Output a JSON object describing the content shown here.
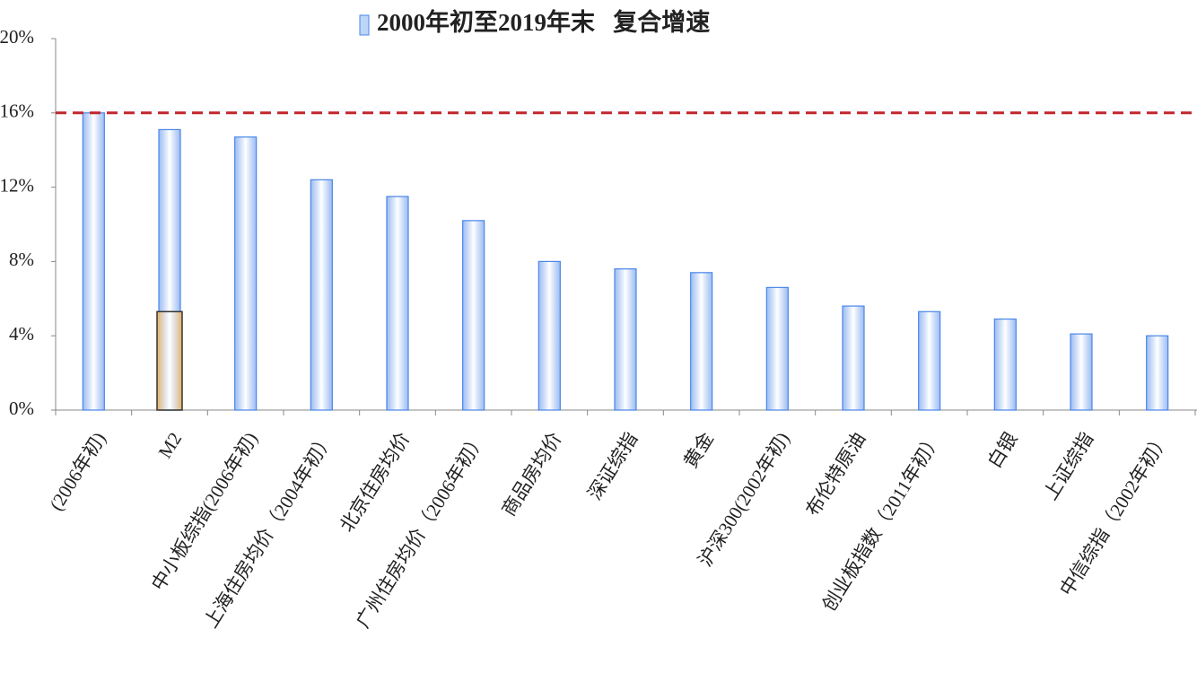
{
  "chart_data": {
    "type": "bar",
    "categories": [
      "(2006年初)",
      "M2",
      "中小板综指(2006年初)",
      "上海住房均价（2004年初）",
      "北京住房均价",
      "广州住房均价（2006年初）",
      "商品房均价",
      "深证综指",
      "黄金",
      "沪深300(2002年初)",
      "布伦特原油",
      "创业板指数（2011年初）",
      "白银",
      "上证综指",
      "中信综指（2002年初）"
    ],
    "series": [
      {
        "name": "2000年初至2019年末   复合增速",
        "color": "#4a86e8",
        "values": [
          16.0,
          15.1,
          14.7,
          12.4,
          11.5,
          10.2,
          8.0,
          7.6,
          7.4,
          6.6,
          5.6,
          5.3,
          4.9,
          4.1,
          4.0
        ]
      },
      {
        "color": "#f0b35e",
        "values": [
          null,
          5.3,
          null,
          null,
          null,
          null,
          null,
          null,
          null,
          null,
          null,
          null,
          null,
          null,
          null
        ]
      }
    ],
    "ylim": [
      0,
      20
    ],
    "yticks": [
      {
        "value": 0,
        "label": "0%"
      },
      {
        "value": 4,
        "label": "4%"
      },
      {
        "value": 8,
        "label": "8%"
      },
      {
        "value": 12,
        "label": "12%"
      },
      {
        "value": 16,
        "label": "16%"
      },
      {
        "value": 20,
        "label": "20%"
      }
    ],
    "reference_line": {
      "value": 16,
      "color": "#c0272d"
    }
  }
}
